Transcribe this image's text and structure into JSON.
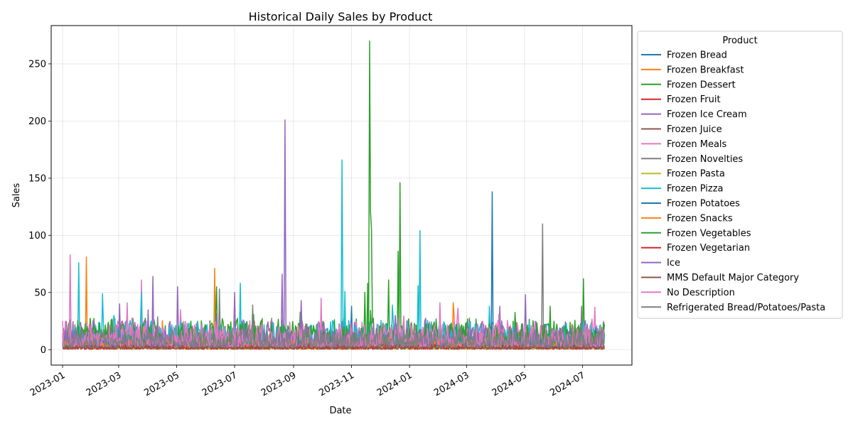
{
  "chart_data": {
    "type": "line",
    "title": "Historical Daily Sales by Product",
    "xlabel": "Date",
    "ylabel": "Sales",
    "x_range": [
      "2022-12-20",
      "2024-08-22"
    ],
    "ylim": [
      -13.5,
      283.5
    ],
    "x_ticks": [
      "2023-01",
      "2023-03",
      "2023-05",
      "2023-07",
      "2023-09",
      "2023-11",
      "2024-01",
      "2024-03",
      "2024-05",
      "2024-07"
    ],
    "y_ticks": [
      0,
      50,
      100,
      150,
      200,
      250
    ],
    "grid": true,
    "legend_title": "Product",
    "legend_position": "outside-right",
    "series": [
      {
        "name": "Frozen Bread",
        "color": "#1f77b4",
        "base": 2,
        "amp": 4,
        "spikes": []
      },
      {
        "name": "Frozen Breakfast",
        "color": "#ff7f0e",
        "base": 4,
        "amp": 8,
        "spikes": [
          [
            "2023-01-26",
            81
          ],
          [
            "2023-06-10",
            71
          ],
          [
            "2024-02-16",
            41
          ],
          [
            "2024-02-17",
            29
          ]
        ]
      },
      {
        "name": "Frozen Dessert",
        "color": "#2ca02c",
        "base": 8,
        "amp": 14,
        "spikes": [
          [
            "2023-06-12",
            55
          ],
          [
            "2023-11-20",
            270
          ],
          [
            "2023-11-21",
            120
          ],
          [
            "2023-11-22",
            105
          ],
          [
            "2023-12-10",
            61
          ],
          [
            "2023-12-22",
            146
          ],
          [
            "2024-07-02",
            62
          ]
        ]
      },
      {
        "name": "Frozen Fruit",
        "color": "#d62728",
        "base": 1,
        "amp": 3,
        "spikes": []
      },
      {
        "name": "Frozen Ice Cream",
        "color": "#9467bd",
        "base": 6,
        "amp": 14,
        "spikes": [
          [
            "2023-04-06",
            64
          ],
          [
            "2023-05-02",
            55
          ],
          [
            "2023-08-20",
            66
          ],
          [
            "2023-08-23",
            201
          ],
          [
            "2024-05-02",
            48
          ]
        ]
      },
      {
        "name": "Frozen Juice",
        "color": "#8c564b",
        "base": 1,
        "amp": 3,
        "spikes": []
      },
      {
        "name": "Frozen Meals",
        "color": "#e377c2",
        "base": 6,
        "amp": 14,
        "spikes": [
          [
            "2023-01-09",
            83
          ],
          [
            "2023-03-25",
            61
          ],
          [
            "2023-05-05",
            35
          ],
          [
            "2023-09-30",
            45
          ]
        ]
      },
      {
        "name": "Frozen Novelties",
        "color": "#7f7f7f",
        "base": 4,
        "amp": 10,
        "spikes": [
          [
            "2023-06-15",
            53
          ],
          [
            "2024-05-20",
            110
          ]
        ]
      },
      {
        "name": "Frozen Pasta",
        "color": "#bcbd22",
        "base": 1,
        "amp": 3,
        "spikes": []
      },
      {
        "name": "Frozen Pizza",
        "color": "#17becf",
        "base": 6,
        "amp": 14,
        "spikes": [
          [
            "2023-01-18",
            76
          ],
          [
            "2023-02-12",
            49
          ],
          [
            "2023-03-25",
            50
          ],
          [
            "2023-07-07",
            58
          ],
          [
            "2023-10-22",
            166
          ],
          [
            "2023-10-25",
            51
          ],
          [
            "2024-01-10",
            56
          ],
          [
            "2024-01-12",
            104
          ],
          [
            "2024-03-25",
            38
          ]
        ]
      },
      {
        "name": "Frozen Potatoes",
        "color": "#1f77b4",
        "base": 3,
        "amp": 6,
        "spikes": [
          [
            "2023-11-01",
            38
          ],
          [
            "2024-03-28",
            138
          ]
        ]
      },
      {
        "name": "Frozen Snacks",
        "color": "#ff7f0e",
        "base": 3,
        "amp": 6,
        "spikes": []
      },
      {
        "name": "Frozen Vegetables",
        "color": "#2ca02c",
        "base": 7,
        "amp": 12,
        "spikes": [
          [
            "2023-11-15",
            50
          ],
          [
            "2023-11-18",
            58
          ],
          [
            "2023-12-20",
            86
          ]
        ]
      },
      {
        "name": "Frozen Vegetarian",
        "color": "#d62728",
        "base": 1,
        "amp": 3,
        "spikes": []
      },
      {
        "name": "Ice",
        "color": "#9467bd",
        "base": 4,
        "amp": 10,
        "spikes": [
          [
            "2023-03-02",
            40
          ],
          [
            "2023-07-01",
            50
          ],
          [
            "2023-09-09",
            43
          ],
          [
            "2024-04-05",
            38
          ]
        ]
      },
      {
        "name": "MMS Default Major Category",
        "color": "#8c564b",
        "base": 1,
        "amp": 2,
        "spikes": []
      },
      {
        "name": "No Description",
        "color": "#e377c2",
        "base": 5,
        "amp": 12,
        "spikes": [
          [
            "2023-03-10",
            41
          ],
          [
            "2024-02-02",
            41
          ]
        ]
      },
      {
        "name": "Refrigerated Bread/Potatoes/Pasta",
        "color": "#7f7f7f",
        "base": 4,
        "amp": 10,
        "spikes": [
          [
            "2023-07-20",
            39
          ],
          [
            "2024-06-30",
            38
          ]
        ]
      }
    ]
  }
}
